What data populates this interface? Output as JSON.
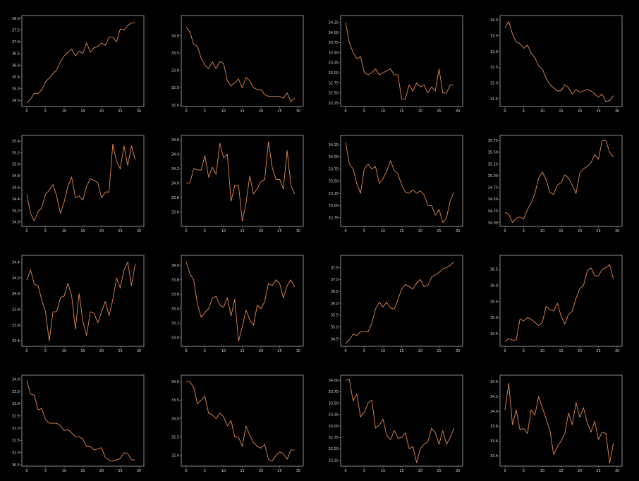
{
  "style": {
    "background": "#000000",
    "line_color": "#e58a4e",
    "frame_color": "#8a8a8a",
    "text_color": "#d8d8d8"
  },
  "chart_data": [
    {
      "type": "line",
      "x": [
        0,
        1,
        2,
        3,
        4,
        5,
        6,
        7,
        8,
        9,
        10,
        11,
        12,
        13,
        14,
        15,
        16,
        17,
        18,
        19,
        20,
        21,
        22,
        23,
        24,
        25,
        26,
        27,
        28,
        29
      ],
      "xlim": [
        0,
        29
      ],
      "ylim": [
        34.3,
        38.0
      ],
      "xticks": [
        0,
        5,
        10,
        15,
        20,
        25,
        30
      ],
      "yticks": [
        34.5,
        35.0,
        35.5,
        36.0,
        36.5,
        37.0,
        37.5,
        38.0
      ],
      "values": [
        34.4,
        34.55,
        34.8,
        34.8,
        34.95,
        35.3,
        35.45,
        35.65,
        35.8,
        36.15,
        36.4,
        36.55,
        36.7,
        36.4,
        36.6,
        36.5,
        36.95,
        36.55,
        36.75,
        36.8,
        36.95,
        36.85,
        37.2,
        37.2,
        37.0,
        37.55,
        37.5,
        37.7,
        37.8,
        37.8
      ]
    },
    {
      "type": "line",
      "x": [
        0,
        1,
        2,
        3,
        4,
        5,
        6,
        7,
        8,
        9,
        10,
        11,
        12,
        13,
        14,
        15,
        16,
        17,
        18,
        19,
        20,
        21,
        22,
        23,
        24,
        25,
        26,
        27,
        28,
        29
      ],
      "xlim": [
        0,
        29
      ],
      "ylim": [
        32.0,
        34.5
      ],
      "xticks": [
        0,
        5,
        10,
        15,
        20,
        25,
        30
      ],
      "yticks": [
        32.0,
        32.5,
        33.0,
        33.5,
        34.0
      ],
      "values": [
        34.25,
        34.1,
        33.75,
        33.7,
        33.35,
        33.15,
        33.05,
        33.25,
        33.05,
        33.25,
        33.2,
        32.7,
        32.55,
        32.65,
        32.75,
        32.5,
        32.8,
        32.7,
        32.5,
        32.45,
        32.45,
        32.3,
        32.25,
        32.25,
        32.25,
        32.25,
        32.2,
        32.35,
        32.1,
        32.2
      ]
    },
    {
      "type": "line",
      "x": [
        0,
        1,
        2,
        3,
        4,
        5,
        6,
        7,
        8,
        9,
        10,
        11,
        12,
        13,
        14,
        15,
        16,
        17,
        18,
        19,
        20,
        21,
        22,
        23,
        24,
        25,
        26,
        27,
        28,
        29
      ],
      "xlim": [
        0,
        29
      ],
      "ylim": [
        32.2,
        34.35
      ],
      "xticks": [
        0,
        5,
        10,
        15,
        20,
        25,
        30
      ],
      "yticks": [
        32.25,
        32.5,
        32.75,
        33.0,
        33.25,
        33.5,
        33.75,
        34.0,
        34.25
      ],
      "values": [
        34.25,
        33.75,
        33.5,
        33.35,
        33.4,
        33.0,
        32.95,
        33.0,
        33.1,
        32.95,
        33.0,
        33.05,
        33.1,
        32.95,
        32.95,
        32.35,
        32.35,
        32.7,
        32.55,
        32.75,
        32.65,
        32.7,
        32.5,
        32.65,
        32.55,
        33.1,
        32.5,
        32.5,
        32.7,
        32.7
      ]
    },
    {
      "type": "line",
      "x": [
        0,
        1,
        2,
        3,
        4,
        5,
        6,
        7,
        8,
        9,
        10,
        11,
        12,
        13,
        14,
        15,
        16,
        17,
        18,
        19,
        20,
        21,
        22,
        23,
        24,
        25,
        26,
        27,
        28,
        29
      ],
      "xlim": [
        0,
        29
      ],
      "ylim": [
        31.3,
        34.05
      ],
      "xticks": [
        0,
        5,
        10,
        15,
        20,
        25,
        30
      ],
      "yticks": [
        31.5,
        32.0,
        32.5,
        33.0,
        33.5,
        34.0
      ],
      "values": [
        33.75,
        33.95,
        33.55,
        33.3,
        33.25,
        33.1,
        33.2,
        32.95,
        32.8,
        32.55,
        32.45,
        32.15,
        31.95,
        31.85,
        31.75,
        31.75,
        31.95,
        31.85,
        31.65,
        31.8,
        31.7,
        31.75,
        31.8,
        31.75,
        31.65,
        31.55,
        31.65,
        31.4,
        31.45,
        31.6
      ]
    },
    {
      "type": "line",
      "x": [
        0,
        1,
        2,
        3,
        4,
        5,
        6,
        7,
        8,
        9,
        10,
        11,
        12,
        13,
        14,
        15,
        16,
        17,
        18,
        19,
        20,
        21,
        22,
        23,
        24,
        25,
        26,
        27,
        28,
        29
      ],
      "xlim": [
        0,
        29
      ],
      "ylim": [
        33.95,
        35.45
      ],
      "xticks": [
        0,
        5,
        10,
        15,
        20,
        25,
        30
      ],
      "yticks": [
        34.0,
        34.2,
        34.4,
        34.6,
        34.8,
        35.0,
        35.2,
        35.4
      ],
      "values": [
        34.48,
        34.15,
        34.02,
        34.18,
        34.25,
        34.48,
        34.55,
        34.65,
        34.45,
        34.15,
        34.35,
        34.62,
        34.78,
        34.42,
        34.45,
        34.38,
        34.62,
        34.75,
        34.72,
        34.68,
        34.42,
        34.52,
        34.52,
        35.35,
        35.05,
        34.92,
        35.32,
        34.98,
        35.32,
        35.08
      ]
    },
    {
      "type": "line",
      "x": [
        0,
        1,
        2,
        3,
        4,
        5,
        6,
        7,
        8,
        9,
        10,
        11,
        12,
        13,
        14,
        15,
        16,
        17,
        18,
        19,
        20,
        21,
        22,
        23,
        24,
        25,
        26,
        27,
        28,
        29
      ],
      "xlim": [
        0,
        29
      ],
      "ylim": [
        33.42,
        34.62
      ],
      "xticks": [
        0,
        5,
        10,
        15,
        20,
        25,
        30
      ],
      "yticks": [
        33.6,
        33.8,
        34.0,
        34.2,
        34.4,
        34.6
      ],
      "values": [
        34.0,
        34.0,
        34.2,
        34.18,
        34.18,
        34.38,
        34.08,
        34.22,
        34.12,
        34.55,
        34.35,
        34.4,
        33.75,
        33.97,
        33.97,
        33.47,
        33.72,
        34.1,
        33.85,
        33.92,
        34.02,
        34.05,
        34.57,
        34.22,
        34.05,
        34.05,
        33.92,
        34.45,
        33.97,
        33.85
      ]
    },
    {
      "type": "line",
      "x": [
        0,
        1,
        2,
        3,
        4,
        5,
        6,
        7,
        8,
        9,
        10,
        11,
        12,
        13,
        14,
        15,
        16,
        17,
        18,
        19,
        20,
        21,
        22,
        23,
        24,
        25,
        26,
        27,
        28,
        29
      ],
      "xlim": [
        0,
        29
      ],
      "ylim": [
        32.6,
        34.38
      ],
      "xticks": [
        0,
        5,
        10,
        15,
        20,
        25,
        30
      ],
      "yticks": [
        32.75,
        33.0,
        33.25,
        33.5,
        33.75,
        34.0,
        34.25
      ],
      "values": [
        34.3,
        33.85,
        33.75,
        33.45,
        33.25,
        33.75,
        33.85,
        33.75,
        33.8,
        33.45,
        33.55,
        33.7,
        33.92,
        33.72,
        33.65,
        33.42,
        33.27,
        33.25,
        33.32,
        33.25,
        33.3,
        33.22,
        33.0,
        33.0,
        32.8,
        32.92,
        32.65,
        32.75,
        33.1,
        33.27
      ]
    },
    {
      "type": "line",
      "x": [
        0,
        1,
        2,
        3,
        4,
        5,
        6,
        7,
        8,
        9,
        10,
        11,
        12,
        13,
        14,
        15,
        16,
        17,
        18,
        19,
        20,
        21,
        22,
        23,
        24,
        25,
        26,
        27,
        28,
        29
      ],
      "xlim": [
        0,
        29
      ],
      "ylim": [
        33.95,
        35.8
      ],
      "xticks": [
        0,
        5,
        10,
        15,
        20,
        25,
        30
      ],
      "yticks": [
        34.0,
        34.25,
        34.5,
        34.75,
        35.0,
        35.25,
        35.5,
        35.75
      ],
      "values": [
        34.22,
        34.18,
        34.0,
        34.1,
        34.12,
        34.08,
        34.28,
        34.42,
        34.62,
        34.95,
        35.08,
        34.92,
        34.65,
        34.6,
        34.8,
        34.85,
        35.02,
        34.95,
        34.8,
        34.62,
        35.05,
        35.15,
        35.2,
        35.28,
        35.45,
        35.35,
        35.75,
        35.75,
        35.5,
        35.4
      ]
    },
    {
      "type": "line",
      "x": [
        0,
        1,
        2,
        3,
        4,
        5,
        6,
        7,
        8,
        9,
        10,
        11,
        12,
        13,
        14,
        15,
        16,
        17,
        18,
        19,
        20,
        21,
        22,
        23,
        24,
        25,
        26,
        27,
        28,
        29
      ],
      "xlim": [
        0,
        29
      ],
      "ylim": [
        33.35,
        34.45
      ],
      "xticks": [
        0,
        5,
        10,
        15,
        20,
        25,
        30
      ],
      "yticks": [
        33.4,
        33.6,
        33.8,
        34.0,
        34.2,
        34.4
      ],
      "values": [
        34.17,
        34.3,
        34.12,
        34.1,
        33.92,
        33.77,
        33.4,
        33.77,
        33.77,
        33.95,
        33.97,
        34.13,
        33.97,
        33.55,
        34.0,
        33.65,
        33.47,
        33.77,
        33.75,
        33.63,
        33.77,
        33.9,
        33.72,
        33.92,
        34.2,
        34.07,
        34.3,
        34.4,
        34.1,
        34.38
      ]
    },
    {
      "type": "line",
      "x": [
        0,
        1,
        2,
        3,
        4,
        5,
        6,
        7,
        8,
        9,
        10,
        11,
        12,
        13,
        14,
        15,
        16,
        17,
        18,
        19,
        20,
        21,
        22,
        23,
        24,
        25,
        26,
        27,
        28,
        29
      ],
      "xlim": [
        0,
        29
      ],
      "ylim": [
        32.9,
        34.1
      ],
      "xticks": [
        0,
        5,
        10,
        15,
        20,
        25,
        30
      ],
      "yticks": [
        33.0,
        33.2,
        33.4,
        33.6,
        33.8,
        34.0
      ],
      "values": [
        34.05,
        33.88,
        33.8,
        33.47,
        33.28,
        33.35,
        33.4,
        33.55,
        33.57,
        33.45,
        33.42,
        33.55,
        33.3,
        33.53,
        32.95,
        33.15,
        33.38,
        33.25,
        33.17,
        33.45,
        33.4,
        33.5,
        33.75,
        33.72,
        33.8,
        33.75,
        33.55,
        33.72,
        33.8,
        33.7
      ]
    },
    {
      "type": "line",
      "x": [
        0,
        1,
        2,
        3,
        4,
        5,
        6,
        7,
        8,
        9,
        10,
        11,
        12,
        13,
        14,
        15,
        16,
        17,
        18,
        19,
        20,
        21,
        22,
        23,
        24,
        25,
        26,
        27,
        28,
        29
      ],
      "xlim": [
        0,
        29
      ],
      "ylim": [
        34.25,
        37.9
      ],
      "xticks": [
        0,
        5,
        10,
        15,
        20,
        25,
        30
      ],
      "yticks": [
        34.5,
        35.0,
        35.5,
        36.0,
        36.5,
        37.0,
        37.5
      ],
      "values": [
        34.3,
        34.45,
        34.7,
        34.65,
        34.8,
        34.8,
        34.8,
        35.15,
        35.75,
        36.05,
        35.85,
        36.05,
        35.8,
        35.75,
        36.15,
        36.6,
        36.8,
        36.7,
        36.6,
        36.85,
        37.0,
        36.7,
        36.75,
        37.1,
        37.2,
        37.3,
        37.45,
        37.5,
        37.6,
        37.75
      ]
    },
    {
      "type": "line",
      "x": [
        0,
        1,
        2,
        3,
        4,
        5,
        6,
        7,
        8,
        9,
        10,
        11,
        12,
        13,
        14,
        15,
        16,
        17,
        18,
        19,
        20,
        21,
        22,
        23,
        24,
        25,
        26,
        27,
        28,
        29
      ],
      "xlim": [
        0,
        29
      ],
      "ylim": [
        34.15,
        36.85
      ],
      "xticks": [
        0,
        5,
        10,
        15,
        20,
        25,
        30
      ],
      "yticks": [
        34.5,
        35.0,
        35.5,
        36.0,
        36.5
      ],
      "values": [
        34.25,
        34.35,
        34.3,
        34.3,
        34.95,
        34.9,
        35.0,
        34.95,
        34.85,
        34.75,
        34.85,
        35.35,
        35.25,
        35.2,
        35.45,
        35.05,
        34.8,
        35.1,
        35.2,
        35.6,
        35.9,
        36.0,
        36.45,
        36.55,
        36.3,
        36.3,
        36.5,
        36.55,
        36.65,
        36.2
      ]
    },
    {
      "type": "line",
      "x": [
        0,
        1,
        2,
        3,
        4,
        5,
        6,
        7,
        8,
        9,
        10,
        11,
        12,
        13,
        14,
        15,
        16,
        17,
        18,
        19,
        20,
        21,
        22,
        23,
        24,
        25,
        26,
        27,
        28,
        29
      ],
      "xlim": [
        0,
        29
      ],
      "ylim": [
        30.5,
        34.05
      ],
      "xticks": [
        0,
        5,
        10,
        15,
        20,
        25,
        30
      ],
      "yticks": [
        30.5,
        31.0,
        31.5,
        32.0,
        32.5,
        33.0,
        33.5,
        34.0
      ],
      "values": [
        33.95,
        33.4,
        33.35,
        32.75,
        32.8,
        32.35,
        32.2,
        32.2,
        32.2,
        32.1,
        31.9,
        31.95,
        31.8,
        31.65,
        31.65,
        31.55,
        31.25,
        31.25,
        31.1,
        31.15,
        31.2,
        30.8,
        30.7,
        30.65,
        30.7,
        30.75,
        31.0,
        30.95,
        30.7,
        30.7
      ]
    },
    {
      "type": "line",
      "x": [
        0,
        1,
        2,
        3,
        4,
        5,
        6,
        7,
        8,
        9,
        10,
        11,
        12,
        13,
        14,
        15,
        16,
        17,
        18,
        19,
        20,
        21,
        22,
        23,
        24,
        25,
        26,
        27,
        28,
        29
      ],
      "xlim": [
        0,
        29
      ],
      "ylim": [
        31.75,
        34.1
      ],
      "xticks": [
        0,
        5,
        10,
        15,
        20,
        25,
        30
      ],
      "yticks": [
        32.0,
        32.5,
        33.0,
        33.5,
        34.0
      ],
      "values": [
        34.0,
        34.0,
        33.85,
        33.4,
        33.5,
        33.6,
        33.15,
        33.1,
        33.0,
        33.15,
        33.05,
        32.8,
        32.95,
        32.5,
        32.5,
        32.25,
        32.8,
        32.55,
        32.35,
        32.25,
        32.2,
        32.3,
        31.9,
        31.85,
        32.0,
        32.1,
        32.05,
        31.9,
        32.15,
        32.15
      ]
    },
    {
      "type": "line",
      "x": [
        0,
        1,
        2,
        3,
        4,
        5,
        6,
        7,
        8,
        9,
        10,
        11,
        12,
        13,
        14,
        15,
        16,
        17,
        18,
        19,
        20,
        21,
        22,
        23,
        24,
        25,
        26,
        27,
        28,
        29
      ],
      "xlim": [
        0,
        29
      ],
      "ylim": [
        32.15,
        34.05
      ],
      "xticks": [
        0,
        5,
        10,
        15,
        20,
        25,
        30
      ],
      "yticks": [
        32.25,
        32.5,
        32.75,
        33.0,
        33.25,
        33.5,
        33.75,
        34.0
      ],
      "values": [
        34.0,
        34.02,
        33.55,
        33.7,
        33.2,
        33.3,
        33.5,
        33.57,
        32.95,
        33.02,
        33.15,
        32.8,
        32.7,
        32.9,
        32.73,
        32.75,
        32.85,
        32.5,
        32.55,
        32.2,
        32.5,
        32.6,
        32.65,
        32.95,
        32.85,
        32.6,
        32.9,
        32.6,
        32.75,
        32.95
      ]
    },
    {
      "type": "line",
      "x": [
        0,
        1,
        2,
        3,
        4,
        5,
        6,
        7,
        8,
        9,
        10,
        11,
        12,
        13,
        14,
        15,
        16,
        17,
        18,
        19,
        20,
        21,
        22,
        23,
        24,
        25,
        26,
        27,
        28,
        29
      ],
      "xlim": [
        0,
        29
      ],
      "ylim": [
        33.28,
        34.45
      ],
      "xticks": [
        0,
        5,
        10,
        15,
        20,
        25,
        30
      ],
      "yticks": [
        33.4,
        33.6,
        33.8,
        34.0,
        34.2,
        34.4
      ],
      "values": [
        34.02,
        34.38,
        33.82,
        34.02,
        33.75,
        33.77,
        33.7,
        34.02,
        33.95,
        34.2,
        34.05,
        33.9,
        33.75,
        33.42,
        33.52,
        33.6,
        33.7,
        33.98,
        33.82,
        34.12,
        33.92,
        34.05,
        33.85,
        33.72,
        33.87,
        33.62,
        33.72,
        33.7,
        33.3,
        33.57
      ]
    }
  ]
}
